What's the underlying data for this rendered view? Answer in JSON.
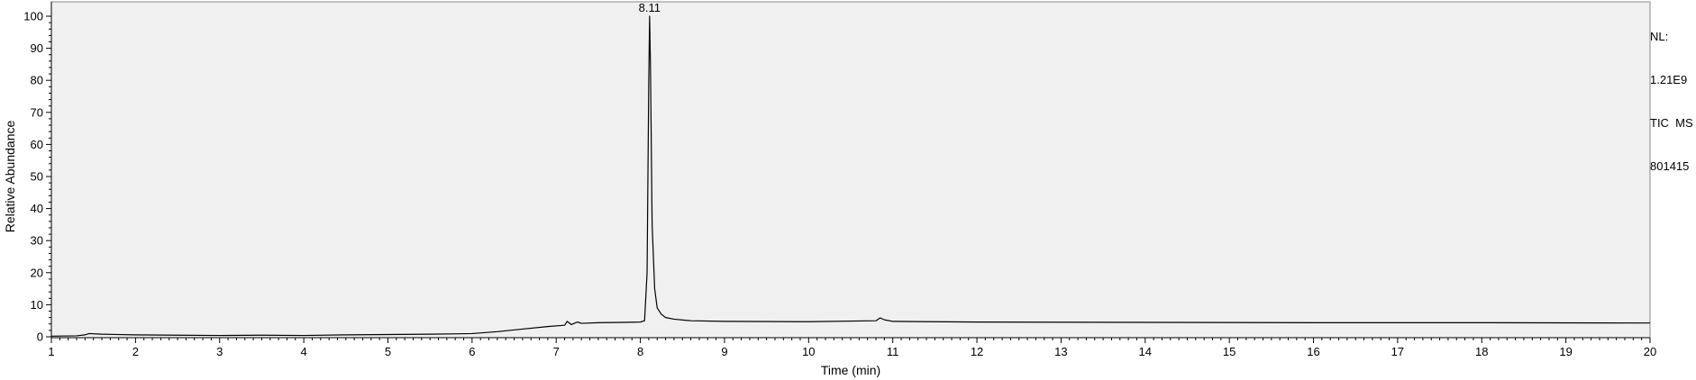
{
  "chart_data": {
    "type": "line",
    "title": "",
    "xlabel": "Time (min)",
    "ylabel": "Relative Abundance",
    "xlim": [
      1,
      20
    ],
    "ylim": [
      0,
      100
    ],
    "x_ticks": [
      1,
      2,
      3,
      4,
      5,
      6,
      7,
      8,
      9,
      10,
      11,
      12,
      13,
      14,
      15,
      16,
      17,
      18,
      19,
      20
    ],
    "y_ticks": [
      0,
      10,
      20,
      30,
      40,
      50,
      60,
      70,
      80,
      90,
      100
    ],
    "grid": false,
    "background_color": "#f0f0f0",
    "line_color": "#000000",
    "series": [
      {
        "x": [
          1.0,
          1.3,
          1.4,
          1.45,
          1.6,
          2.0,
          2.5,
          3.0,
          3.5,
          4.0,
          4.5,
          5.0,
          5.5,
          6.0,
          6.3,
          6.6,
          6.9,
          7.1,
          7.13,
          7.18,
          7.25,
          7.3,
          7.5,
          7.8,
          8.0,
          8.05,
          8.08,
          8.1,
          8.11,
          8.12,
          8.14,
          8.17,
          8.2,
          8.25,
          8.3,
          8.4,
          8.6,
          9.0,
          10.0,
          10.8,
          10.85,
          10.9,
          11.0,
          12.0,
          14.0,
          16.0,
          18.0,
          20.0
        ],
        "y": [
          0.2,
          0.3,
          0.6,
          1.0,
          0.8,
          0.6,
          0.5,
          0.4,
          0.5,
          0.4,
          0.6,
          0.7,
          0.8,
          1.0,
          1.6,
          2.4,
          3.2,
          3.6,
          4.8,
          3.8,
          4.6,
          4.2,
          4.4,
          4.5,
          4.6,
          5.0,
          20.0,
          80.0,
          100.0,
          85.0,
          35.0,
          15.0,
          9.0,
          7.0,
          6.0,
          5.5,
          5.0,
          4.8,
          4.7,
          5.0,
          5.9,
          5.3,
          4.8,
          4.6,
          4.5,
          4.4,
          4.4,
          4.3
        ]
      }
    ],
    "annotations": [
      {
        "text": "8.11",
        "x": 8.11,
        "y": 100
      }
    ],
    "info_text": [
      "NL:",
      "1.21E9",
      "TIC  MS",
      "801415"
    ]
  }
}
